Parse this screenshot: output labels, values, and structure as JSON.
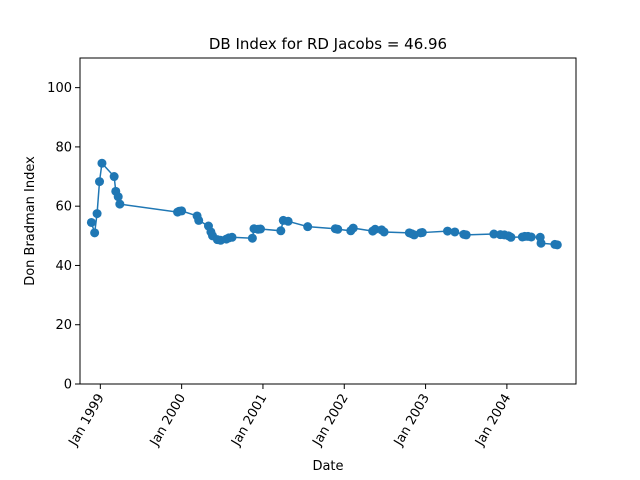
{
  "chart_data": {
    "type": "line",
    "title": "DB Index for RD Jacobs = 46.96",
    "xlabel": "Date",
    "ylabel": "Don Bradman Index",
    "ylim": [
      0,
      110
    ],
    "yticks": [
      0,
      20,
      40,
      60,
      80,
      100
    ],
    "xlim": [
      1998.75,
      2004.85
    ],
    "xticks": [
      {
        "value": 1999.0,
        "label": "Jan 1999"
      },
      {
        "value": 2000.0,
        "label": "Jan 2000"
      },
      {
        "value": 2001.0,
        "label": "Jan 2001"
      },
      {
        "value": 2002.0,
        "label": "Jan 2002"
      },
      {
        "value": 2003.0,
        "label": "Jan 2003"
      },
      {
        "value": 2004.0,
        "label": "Jan 2004"
      }
    ],
    "grid": false,
    "color": "#1f77b4",
    "series": [
      {
        "name": "DB Index",
        "x": [
          1998.89,
          1998.93,
          1998.96,
          1998.99,
          1999.02,
          1999.17,
          1999.19,
          1999.22,
          1999.24,
          1999.95,
          1999.97,
          2000.0,
          2000.19,
          2000.21,
          2000.33,
          2000.36,
          2000.38,
          2000.44,
          2000.48,
          2000.55,
          2000.58,
          2000.62,
          2000.87,
          2000.89,
          2000.94,
          2000.97,
          2001.22,
          2001.25,
          2001.31,
          2001.55,
          2001.89,
          2001.92,
          2002.08,
          2002.11,
          2002.35,
          2002.38,
          2002.46,
          2002.49,
          2002.8,
          2002.83,
          2002.86,
          2002.94,
          2002.96,
          2003.27,
          2003.36,
          2003.47,
          2003.5,
          2003.84,
          2003.92,
          2003.97,
          2004.02,
          2004.05,
          2004.19,
          2004.22,
          2004.26,
          2004.3,
          2004.41,
          2004.42,
          2004.59,
          2004.62
        ],
        "y": [
          54.5,
          51.0,
          57.5,
          68.3,
          74.5,
          70.0,
          65.0,
          63.2,
          60.7,
          58.0,
          58.3,
          58.4,
          56.7,
          55.2,
          53.3,
          51.3,
          50.0,
          48.7,
          48.5,
          48.9,
          49.3,
          49.5,
          49.2,
          52.4,
          52.2,
          52.3,
          51.7,
          55.2,
          54.9,
          53.1,
          52.4,
          52.2,
          51.7,
          52.6,
          51.6,
          52.2,
          52.0,
          51.3,
          51.0,
          50.7,
          50.3,
          51.0,
          51.1,
          51.6,
          51.3,
          50.5,
          50.3,
          50.6,
          50.4,
          50.3,
          50.0,
          49.5,
          49.6,
          49.8,
          49.8,
          49.6,
          49.5,
          47.5,
          47.1,
          46.96
        ]
      }
    ]
  }
}
